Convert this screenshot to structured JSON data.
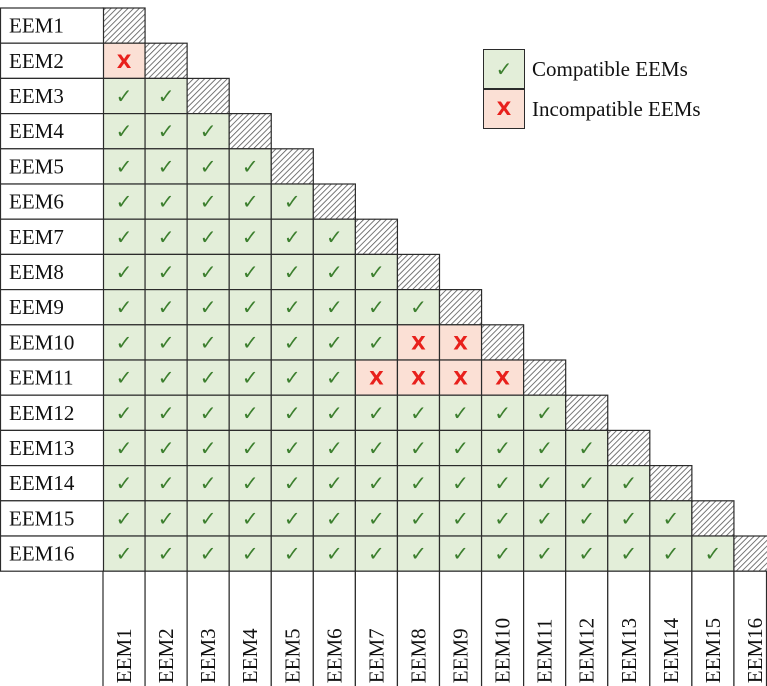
{
  "row_labels": [
    "EEM1",
    "EEM2",
    "EEM3",
    "EEM4",
    "EEM5",
    "EEM6",
    "EEM7",
    "EEM8",
    "EEM9",
    "EEM10",
    "EEM11",
    "EEM12",
    "EEM13",
    "EEM14",
    "EEM15",
    "EEM16"
  ],
  "column_labels": [
    "EEM1",
    "EEM2",
    "EEM3",
    "EEM4",
    "EEM5",
    "EEM6",
    "EEM7",
    "EEM8",
    "EEM9",
    "EEM10",
    "EEM11",
    "EEM12",
    "EEM13",
    "EEM14",
    "EEM15",
    "EEM16"
  ],
  "incompatible_pairs": [
    [
      "EEM2",
      "EEM1"
    ],
    [
      "EEM10",
      "EEM8"
    ],
    [
      "EEM10",
      "EEM9"
    ],
    [
      "EEM11",
      "EEM7"
    ],
    [
      "EEM11",
      "EEM8"
    ],
    [
      "EEM11",
      "EEM9"
    ],
    [
      "EEM11",
      "EEM10"
    ]
  ],
  "symbols": {
    "compatible": "✓",
    "incompatible": "X"
  },
  "legend": {
    "compatible_label": "Compatible EEMs",
    "incompatible_label": "Incompatible EEMs"
  },
  "colors": {
    "compatible_fill": "#e3eed9",
    "incompatible_fill": "#fbe0d5",
    "check": "#3c7f2e",
    "cross": "#e8201c",
    "border": "#2b2b2b"
  }
}
